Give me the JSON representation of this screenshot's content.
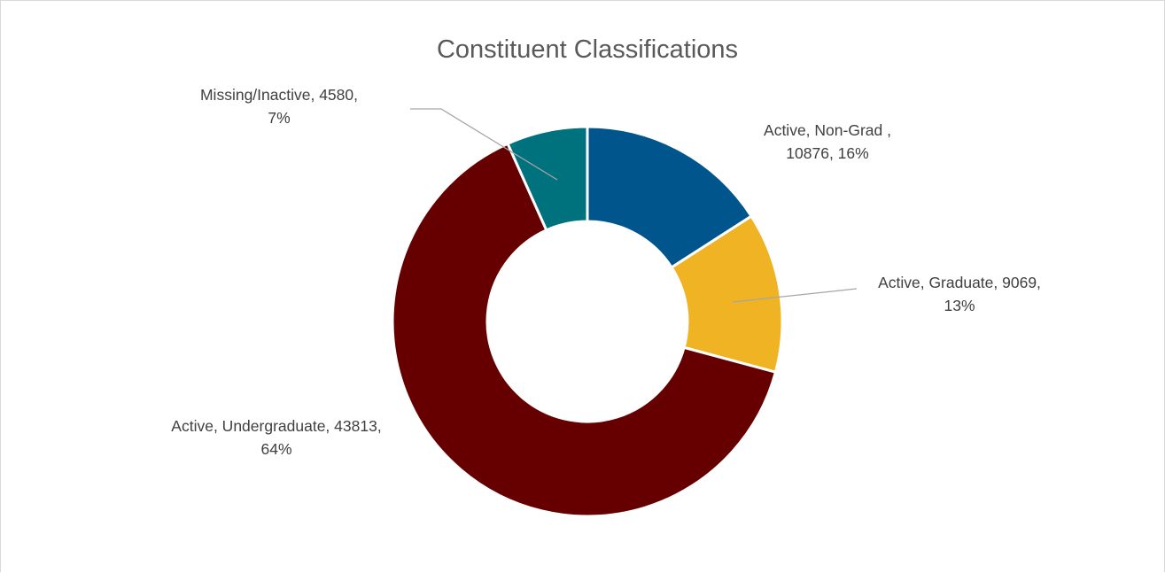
{
  "chart_data": {
    "type": "pie",
    "variant": "doughnut",
    "title": "Constituent Classifications",
    "legend": "none",
    "slices": [
      {
        "category": "Active, Non-Grad ",
        "value": 10876,
        "percent": "16%",
        "color": "#00558c",
        "label_lines": [
          "Active, Non-Grad ,",
          "10876, 16%"
        ]
      },
      {
        "category": "Active, Graduate",
        "value": 9069,
        "percent": "13%",
        "color": "#f0b323",
        "label_lines": [
          "Active, Graduate, 9069,",
          "13%"
        ]
      },
      {
        "category": "Active, Undergraduate",
        "value": 43813,
        "percent": "64%",
        "color": "#660000",
        "label_lines": [
          "Active, Undergraduate, 43813,",
          "64%"
        ]
      },
      {
        "category": "Missing/Inactive",
        "value": 4580,
        "percent": "7%",
        "color": "#00727d",
        "label_lines": [
          "Missing/Inactive, 4580,",
          "7%"
        ]
      }
    ]
  }
}
